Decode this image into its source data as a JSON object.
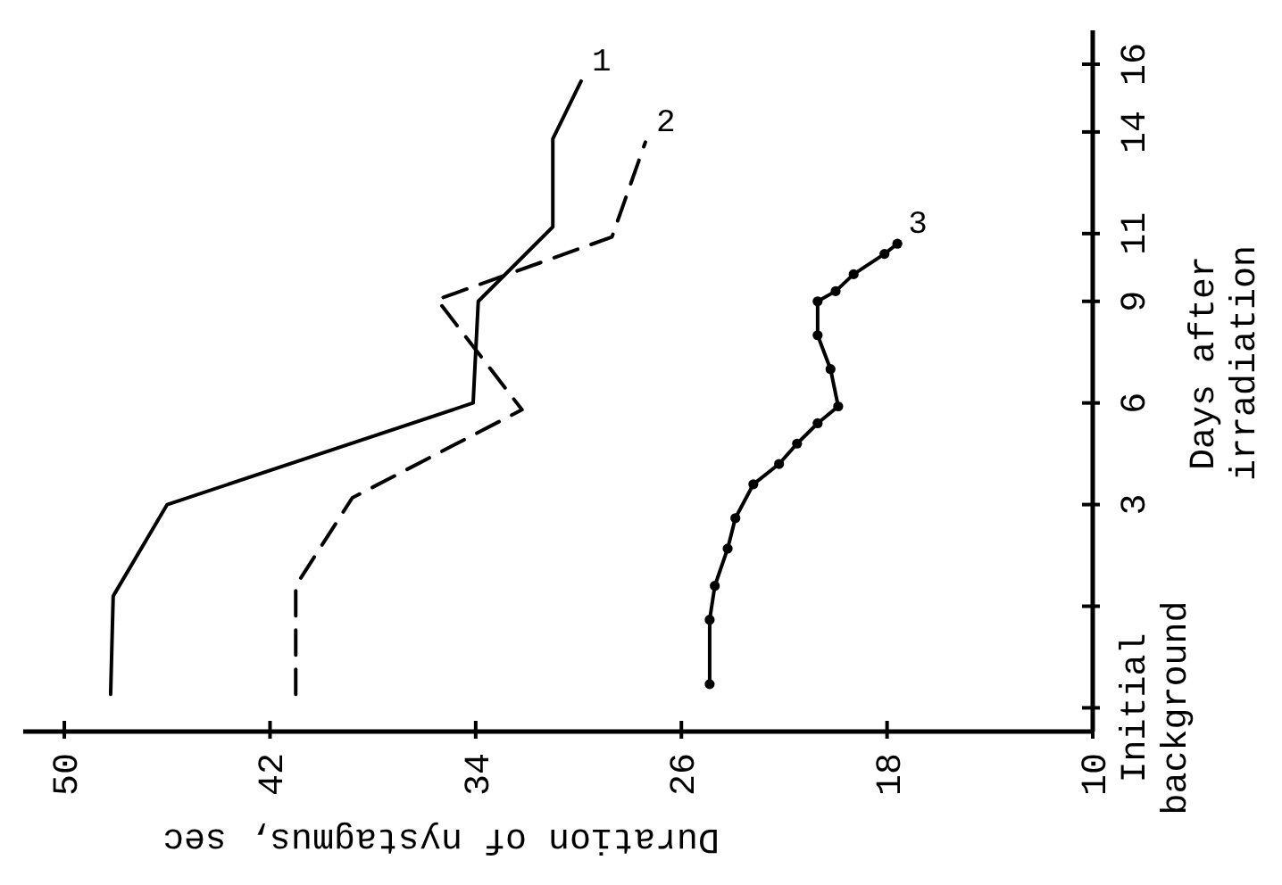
{
  "chart_data": {
    "type": "line",
    "xlabel": "Duration of nystagmus, sec",
    "y2label": "Days after\nirradiation",
    "xlim": [
      51.6,
      10
    ],
    "y2lim": [
      -3.7,
      17
    ],
    "xticks": [
      50,
      42,
      34,
      26,
      18,
      10
    ],
    "y2ticks": [
      {
        "value": -3,
        "label": "Initial\nbackground"
      },
      {
        "value": 0,
        "label": null
      },
      3,
      6,
      9,
      11,
      14,
      16
    ],
    "series": [
      {
        "name": "1",
        "color": "#000000",
        "axis": "y2",
        "line_style": "solid",
        "marker": "none",
        "x": [
          48.2,
          48.1,
          46.0,
          34.1,
          33.9,
          31.0,
          31.0,
          29.9
        ],
        "values": [
          -2.6,
          0.3,
          3,
          6,
          9,
          11.2,
          13.8,
          15.5
        ]
      },
      {
        "name": "2",
        "color": "#000000",
        "axis": "y2",
        "line_style": "dashed",
        "marker": "none",
        "x": [
          41.0,
          41.0,
          38.8,
          32.2,
          35.5,
          28.7,
          27.4
        ],
        "values": [
          -2.6,
          0.6,
          3.2,
          5.8,
          9.05,
          10.9,
          13.7
        ]
      },
      {
        "name": "3",
        "color": "#000000",
        "axis": "y2",
        "line_style": "solid",
        "marker": "circle",
        "x": [
          24.9,
          24.9,
          24.7,
          24.2,
          23.9,
          23.2,
          22.2,
          21.5,
          20.7,
          19.9,
          20.2,
          20.7,
          20.7,
          20.0,
          19.3,
          18.1,
          17.6
        ],
        "values": [
          -2.3,
          -0.4,
          0.6,
          1.7,
          2.6,
          3.6,
          4.2,
          4.8,
          5.4,
          5.9,
          7.0,
          8.0,
          9.0,
          9.3,
          9.8,
          10.4,
          10.7
        ]
      }
    ]
  }
}
